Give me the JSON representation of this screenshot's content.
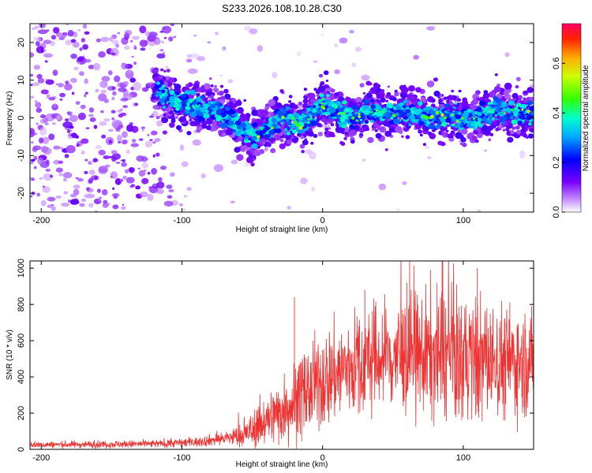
{
  "title": "S233.2026.108.10.28.C30",
  "chart_data": [
    {
      "type": "heatmap",
      "name": "spectrogram",
      "xlabel": "Height of straight line (km)",
      "ylabel": "Frequency (Hz)",
      "xlim": [
        -208,
        150
      ],
      "ylim": [
        -25,
        25
      ],
      "xticks": [
        -200,
        -100,
        0,
        100
      ],
      "yticks": [
        20,
        10,
        0,
        -10,
        -20
      ],
      "colorbar": {
        "label": "Normalized spectral amplitude",
        "range": [
          0.0,
          0.76
        ],
        "ticks": [
          0.0,
          0.2,
          0.4,
          0.6
        ]
      },
      "ridge_centerline": [
        {
          "x": -118,
          "f": 8
        },
        {
          "x": -105,
          "f": 4
        },
        {
          "x": -90,
          "f": 3
        },
        {
          "x": -75,
          "f": 2
        },
        {
          "x": -60,
          "f": -2
        },
        {
          "x": -48,
          "f": -5
        },
        {
          "x": -40,
          "f": -3
        },
        {
          "x": -30,
          "f": 0
        },
        {
          "x": -15,
          "f": -2
        },
        {
          "x": -5,
          "f": 2
        },
        {
          "x": 0,
          "f": 4
        },
        {
          "x": 10,
          "f": 1
        },
        {
          "x": 20,
          "f": 0
        },
        {
          "x": 35,
          "f": 2
        },
        {
          "x": 50,
          "f": 1
        },
        {
          "x": 60,
          "f": 2
        },
        {
          "x": 75,
          "f": 0
        },
        {
          "x": 90,
          "f": 1
        },
        {
          "x": 100,
          "f": -1
        },
        {
          "x": 115,
          "f": 1
        },
        {
          "x": 125,
          "f": 2
        },
        {
          "x": 140,
          "f": 1
        },
        {
          "x": 150,
          "f": 1
        }
      ]
    },
    {
      "type": "line",
      "name": "snr",
      "xlabel": "Height of straight line (km)",
      "ylabel": "SNR (10 * v/v)",
      "xlim": [
        -208,
        150
      ],
      "ylim": [
        0,
        1040
      ],
      "xticks": [
        -200,
        -100,
        0,
        100
      ],
      "yticks": [
        0,
        200,
        400,
        600,
        800,
        1000
      ],
      "color": "#ee3333",
      "envelope": [
        {
          "x": -208,
          "mean": 25,
          "spread": 10
        },
        {
          "x": -120,
          "mean": 30,
          "spread": 12
        },
        {
          "x": -90,
          "mean": 40,
          "spread": 15
        },
        {
          "x": -70,
          "mean": 60,
          "spread": 20
        },
        {
          "x": -55,
          "mean": 80,
          "spread": 40
        },
        {
          "x": -40,
          "mean": 160,
          "spread": 80
        },
        {
          "x": -20,
          "mean": 260,
          "spread": 120
        },
        {
          "x": 0,
          "mean": 380,
          "spread": 150
        },
        {
          "x": 20,
          "mean": 460,
          "spread": 160
        },
        {
          "x": 40,
          "mean": 500,
          "spread": 170
        },
        {
          "x": 60,
          "mean": 520,
          "spread": 180
        },
        {
          "x": 80,
          "mean": 520,
          "spread": 200
        },
        {
          "x": 100,
          "mean": 500,
          "spread": 200
        },
        {
          "x": 120,
          "mean": 490,
          "spread": 180
        },
        {
          "x": 150,
          "mean": 480,
          "spread": 150
        }
      ],
      "spikes": [
        {
          "x": -20,
          "v": 840
        },
        {
          "x": 85,
          "v": 1040
        },
        {
          "x": 110,
          "v": 1000
        },
        {
          "x": 60,
          "v": 920
        },
        {
          "x": 30,
          "v": 880
        }
      ]
    }
  ]
}
